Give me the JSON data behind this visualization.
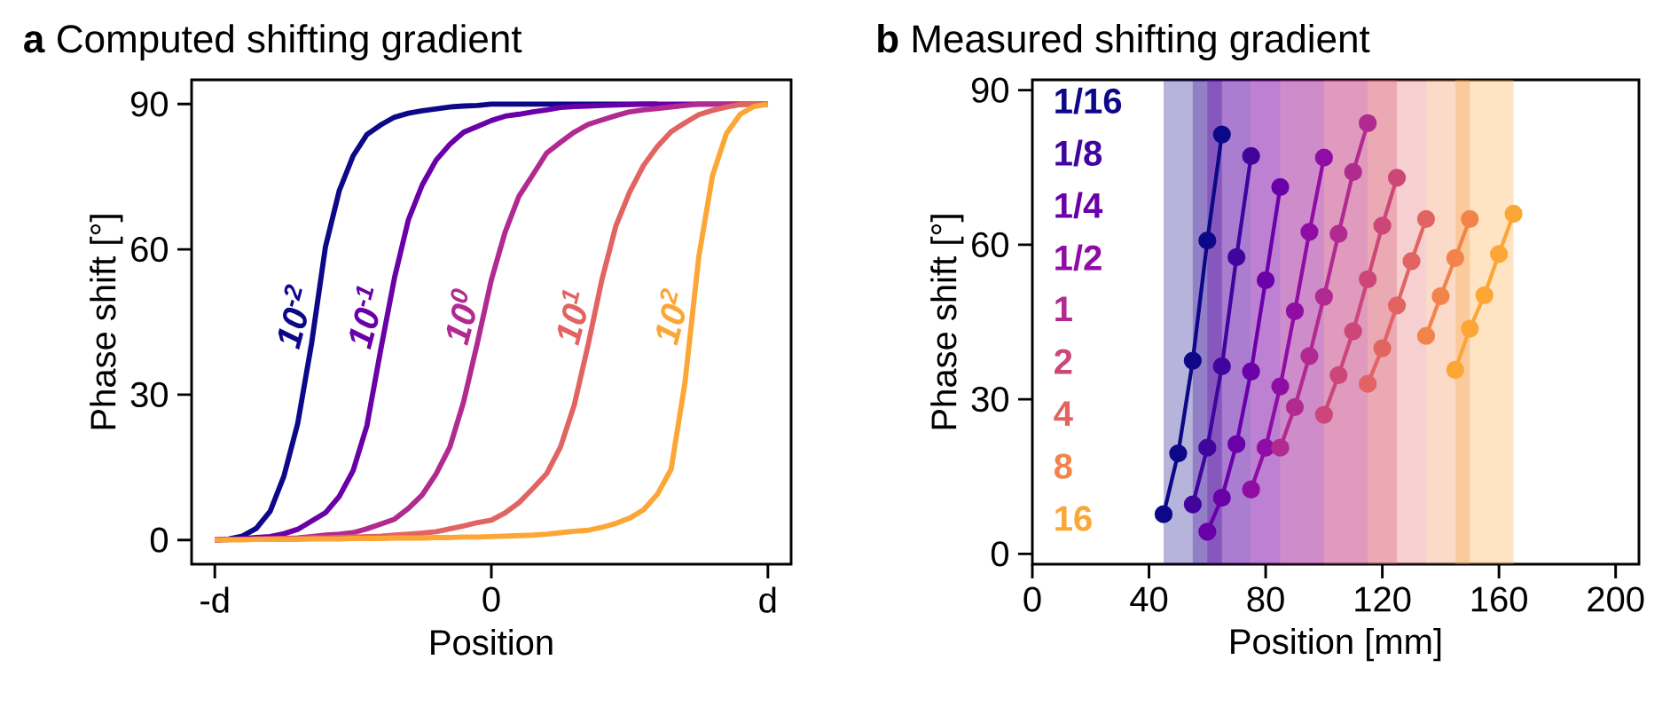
{
  "chart_data": [
    {
      "type": "line",
      "title": "**a** Computed shifting gradient",
      "xlabel": "Position",
      "ylabel": "Phase shift [°]",
      "categories": [
        "-d",
        null,
        null,
        null,
        null,
        null,
        null,
        null,
        null,
        null,
        null,
        null,
        null,
        null,
        null,
        null,
        null,
        null,
        null,
        null,
        "0",
        null,
        null,
        null,
        null,
        null,
        null,
        null,
        null,
        null,
        null,
        null,
        null,
        null,
        null,
        null,
        null,
        null,
        null,
        null,
        "d"
      ],
      "ylim": [
        -5,
        95
      ],
      "yticks": [
        0,
        30,
        60,
        90
      ],
      "series": [
        {
          "name": "10$^{-2}$",
          "color": "#0d0887",
          "values": [
            0,
            0.2,
            0.8,
            2.4,
            5.9,
            13.2,
            24.1,
            40.6,
            60.5,
            72.1,
            79.3,
            83.7,
            85.7,
            87.3,
            88.1,
            88.6,
            89,
            89.4,
            89.6,
            89.7,
            90,
            90,
            90,
            90,
            90,
            90,
            90,
            90,
            90,
            90,
            90,
            90,
            90,
            null,
            null,
            null,
            null,
            null,
            null,
            null,
            null
          ]
        },
        {
          "name": "10$^{-1}$",
          "color": "#6a00a8",
          "values": [
            0,
            0.1,
            0.3,
            0.5,
            0.7,
            1.3,
            2.2,
            3.9,
            5.6,
            9,
            14.3,
            23.6,
            39.3,
            54.2,
            66.1,
            73.3,
            78.4,
            81.7,
            84.2,
            85.4,
            86.6,
            87.5,
            87.9,
            88.4,
            88.8,
            89.3,
            89.5,
            89.6,
            89.7,
            89.8,
            89.9,
            90,
            90,
            90,
            90,
            90,
            90,
            90,
            90,
            90,
            90
          ]
        },
        {
          "name": "10$^{0}$",
          "color": "#b12a90",
          "values": [
            0,
            0.1,
            0.1,
            0.2,
            0.3,
            0.3,
            0.4,
            0.7,
            1,
            1.2,
            1.5,
            2.3,
            3.3,
            4.3,
            6.5,
            9.3,
            13.6,
            19.2,
            28.6,
            40.8,
            53.7,
            63.6,
            71,
            75.4,
            79.9,
            82.1,
            84.2,
            85.8,
            86.7,
            87.6,
            88.4,
            88.8,
            89.1,
            89.4,
            89.7,
            90,
            90,
            90,
            90,
            90,
            90
          ]
        },
        {
          "name": "10$^{1}$",
          "color": "#e16462",
          "values": [
            0,
            0.1,
            0.1,
            0.2,
            0.2,
            0.3,
            0.3,
            0.4,
            0.4,
            0.5,
            0.6,
            0.7,
            0.8,
            1,
            1.2,
            1.4,
            1.7,
            2.3,
            2.9,
            3.6,
            4.1,
            5.6,
            7.7,
            10.6,
            13.7,
            19.2,
            27.9,
            40.3,
            53.8,
            64.8,
            71.8,
            77.3,
            81.2,
            84.3,
            86.1,
            87.8,
            88.7,
            89.4,
            89.9,
            90,
            90
          ]
        },
        {
          "name": "10$^{2}$",
          "color": "#fca636",
          "values": [
            0,
            0,
            0,
            0.1,
            0.1,
            0.1,
            0.1,
            0.2,
            0.2,
            0.2,
            0.3,
            0.3,
            0.3,
            0.4,
            0.4,
            0.4,
            0.5,
            0.5,
            0.6,
            0.6,
            0.7,
            0.8,
            0.9,
            1,
            1.2,
            1.5,
            1.8,
            2,
            2.6,
            3.4,
            4.5,
            6.2,
            9.4,
            14.6,
            32.4,
            58.4,
            75.3,
            83.9,
            87.9,
            89.5,
            90
          ]
        }
      ]
    },
    {
      "type": "line",
      "title": "**b** Measured shifting gradient",
      "xlabel": "Position [mm]",
      "ylabel": "Phase shift [°]",
      "xlim": [
        0,
        208
      ],
      "xticks": [
        0,
        40,
        80,
        120,
        160,
        200
      ],
      "ylim": [
        -2,
        92
      ],
      "yticks": [
        0,
        30,
        60,
        90
      ],
      "marker": "circle",
      "legend": "left",
      "bands": [
        {
          "axis": "x",
          "from": 45,
          "to": 65,
          "color": "#0d0887"
        },
        {
          "axis": "x",
          "from": 55,
          "to": 75,
          "color": "#41049d"
        },
        {
          "axis": "x",
          "from": 60,
          "to": 85,
          "color": "#6a00a8"
        },
        {
          "axis": "x",
          "from": 75,
          "to": 100,
          "color": "#8f0da4"
        },
        {
          "axis": "x",
          "from": 85,
          "to": 115,
          "color": "#b12a90"
        },
        {
          "axis": "x",
          "from": 100,
          "to": 125,
          "color": "#cc4778"
        },
        {
          "axis": "x",
          "from": 115,
          "to": 135,
          "color": "#e16462"
        },
        {
          "axis": "x",
          "from": 135,
          "to": 150,
          "color": "#f2844b"
        },
        {
          "axis": "x",
          "from": 145,
          "to": 165,
          "color": "#fca636"
        }
      ],
      "series": [
        {
          "name": "1/16",
          "color": "#0d0887",
          "x": [
            45,
            50,
            55,
            60,
            65
          ],
          "values": [
            7.7,
            19.5,
            37.5,
            60.8,
            81.4
          ]
        },
        {
          "name": "1/8",
          "color": "#41049d",
          "x": [
            55,
            60,
            65,
            70,
            75
          ],
          "values": [
            9.6,
            20.6,
            36.4,
            57.6,
            77.2
          ]
        },
        {
          "name": "1/4",
          "color": "#6a00a8",
          "x": [
            60,
            65,
            70,
            75,
            80,
            85
          ],
          "values": [
            4.3,
            10.9,
            21.3,
            35.4,
            53.1,
            71.2
          ]
        },
        {
          "name": "1/2",
          "color": "#8f0da4",
          "x": [
            75,
            80,
            85,
            90,
            95,
            100
          ],
          "values": [
            12.5,
            20.6,
            32.5,
            47.1,
            62.5,
            76.9
          ]
        },
        {
          "name": "1",
          "color": "#b12a90",
          "x": [
            85,
            90,
            95,
            100,
            105,
            110,
            115
          ],
          "values": [
            20.6,
            28.5,
            38.4,
            49.9,
            62.1,
            74.1,
            83.6
          ]
        },
        {
          "name": "2",
          "color": "#cc4778",
          "x": [
            100,
            105,
            110,
            115,
            120,
            125
          ],
          "values": [
            27,
            34.7,
            43.2,
            53.3,
            63.7,
            73
          ]
        },
        {
          "name": "4",
          "color": "#e16462",
          "x": [
            115,
            120,
            125,
            130,
            135
          ],
          "values": [
            33,
            39.9,
            48.2,
            56.8,
            65
          ]
        },
        {
          "name": "8",
          "color": "#f2844b",
          "x": [
            135,
            140,
            145,
            150
          ],
          "values": [
            42.3,
            50,
            57.4,
            65
          ]
        },
        {
          "name": "16",
          "color": "#fca636",
          "x": [
            145,
            150,
            155,
            160,
            165
          ],
          "values": [
            35.7,
            43.7,
            50.2,
            58.2,
            66
          ]
        }
      ]
    }
  ]
}
